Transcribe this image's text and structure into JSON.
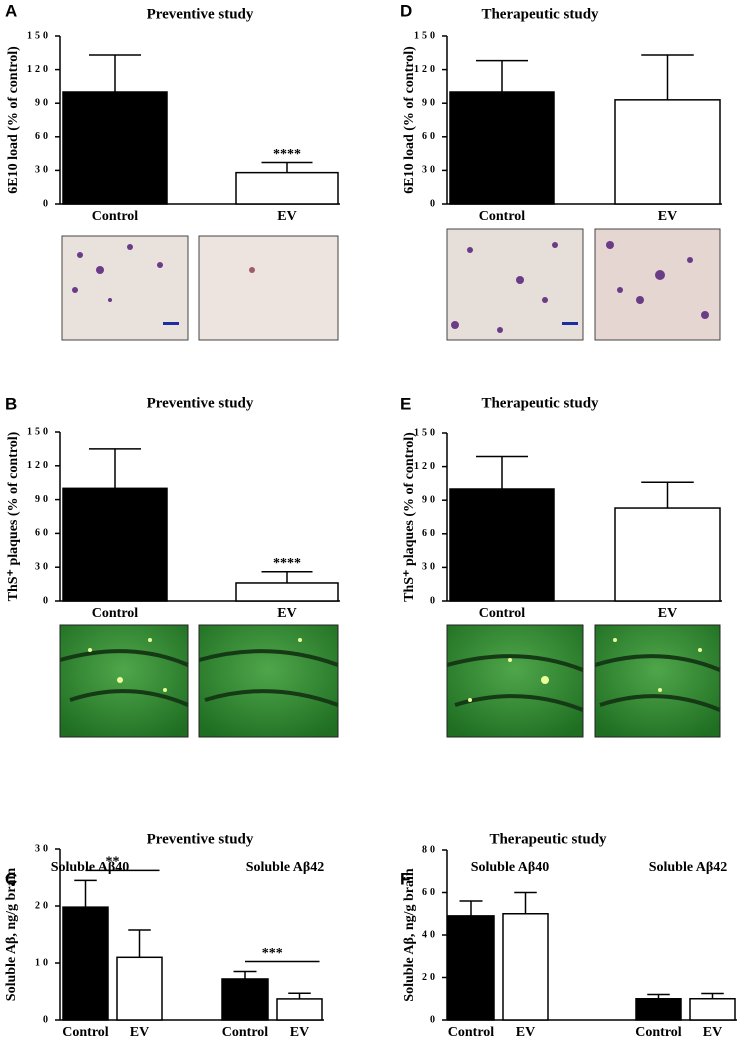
{
  "chart_data": [
    {
      "type": "bar",
      "letter": "A",
      "title": "Preventive study",
      "ylabel": "6E10 load (% of control)",
      "categories": [
        "Control",
        "EV"
      ],
      "values": [
        100,
        28
      ],
      "errors": [
        33,
        9
      ],
      "colors": [
        "#000000",
        "#ffffff"
      ],
      "ylim": [
        0,
        150
      ],
      "yticks": [
        0,
        30,
        60,
        90,
        120,
        150
      ],
      "annotations": [
        "****"
      ]
    },
    {
      "type": "bar",
      "letter": "B",
      "title": "Preventive study",
      "ylabel": "ThS⁺ plaques (% of control)",
      "categories": [
        "Control",
        "EV"
      ],
      "values": [
        100,
        16
      ],
      "errors": [
        35,
        10
      ],
      "colors": [
        "#000000",
        "#ffffff"
      ],
      "ylim": [
        0,
        150
      ],
      "yticks": [
        0,
        30,
        60,
        90,
        120,
        150
      ],
      "annotations": [
        "****"
      ]
    },
    {
      "type": "bar",
      "letter": "C",
      "title": "Preventive study",
      "ylabel": "Soluble Aβ, ng/g brain",
      "groups": [
        "Soluble Aβ40",
        "Soluble Aβ42"
      ],
      "categories": [
        "Control",
        "EV",
        "Control",
        "EV"
      ],
      "values": [
        19.8,
        11,
        7.2,
        3.7
      ],
      "errors": [
        4.7,
        4.8,
        1.3,
        1
      ],
      "colors": [
        "#000000",
        "#ffffff",
        "#000000",
        "#ffffff"
      ],
      "ylim": [
        0,
        30
      ],
      "yticks": [
        0,
        10,
        20,
        30
      ],
      "annotations": [
        "**",
        "***"
      ]
    },
    {
      "type": "bar",
      "letter": "D",
      "title": "Therapeutic study",
      "ylabel": "6E10 load (% of control)",
      "categories": [
        "Control",
        "EV"
      ],
      "values": [
        100,
        93
      ],
      "errors": [
        28,
        40
      ],
      "colors": [
        "#000000",
        "#ffffff"
      ],
      "ylim": [
        0,
        150
      ],
      "yticks": [
        0,
        30,
        60,
        90,
        120,
        150
      ]
    },
    {
      "type": "bar",
      "letter": "E",
      "title": "Therapeutic study",
      "ylabel": "ThS⁺ plaques (% of control)",
      "categories": [
        "Control",
        "EV"
      ],
      "values": [
        100,
        83
      ],
      "errors": [
        29,
        23
      ],
      "colors": [
        "#000000",
        "#ffffff"
      ],
      "ylim": [
        0,
        150
      ],
      "yticks": [
        0,
        30,
        60,
        90,
        120,
        150
      ]
    },
    {
      "type": "bar",
      "letter": "F",
      "title": "Therapeutic study",
      "ylabel": "Soluble Aβ, ng/g brain",
      "groups": [
        "Soluble Aβ40",
        "Soluble Aβ42"
      ],
      "categories": [
        "Control",
        "EV",
        "Control",
        "EV"
      ],
      "values": [
        49,
        50,
        10,
        10
      ],
      "errors": [
        7,
        10,
        2,
        2.5
      ],
      "colors": [
        "#000000",
        "#ffffff",
        "#000000",
        "#ffffff"
      ],
      "ylim": [
        0,
        80
      ],
      "yticks": [
        0,
        20,
        40,
        60,
        80
      ]
    }
  ]
}
